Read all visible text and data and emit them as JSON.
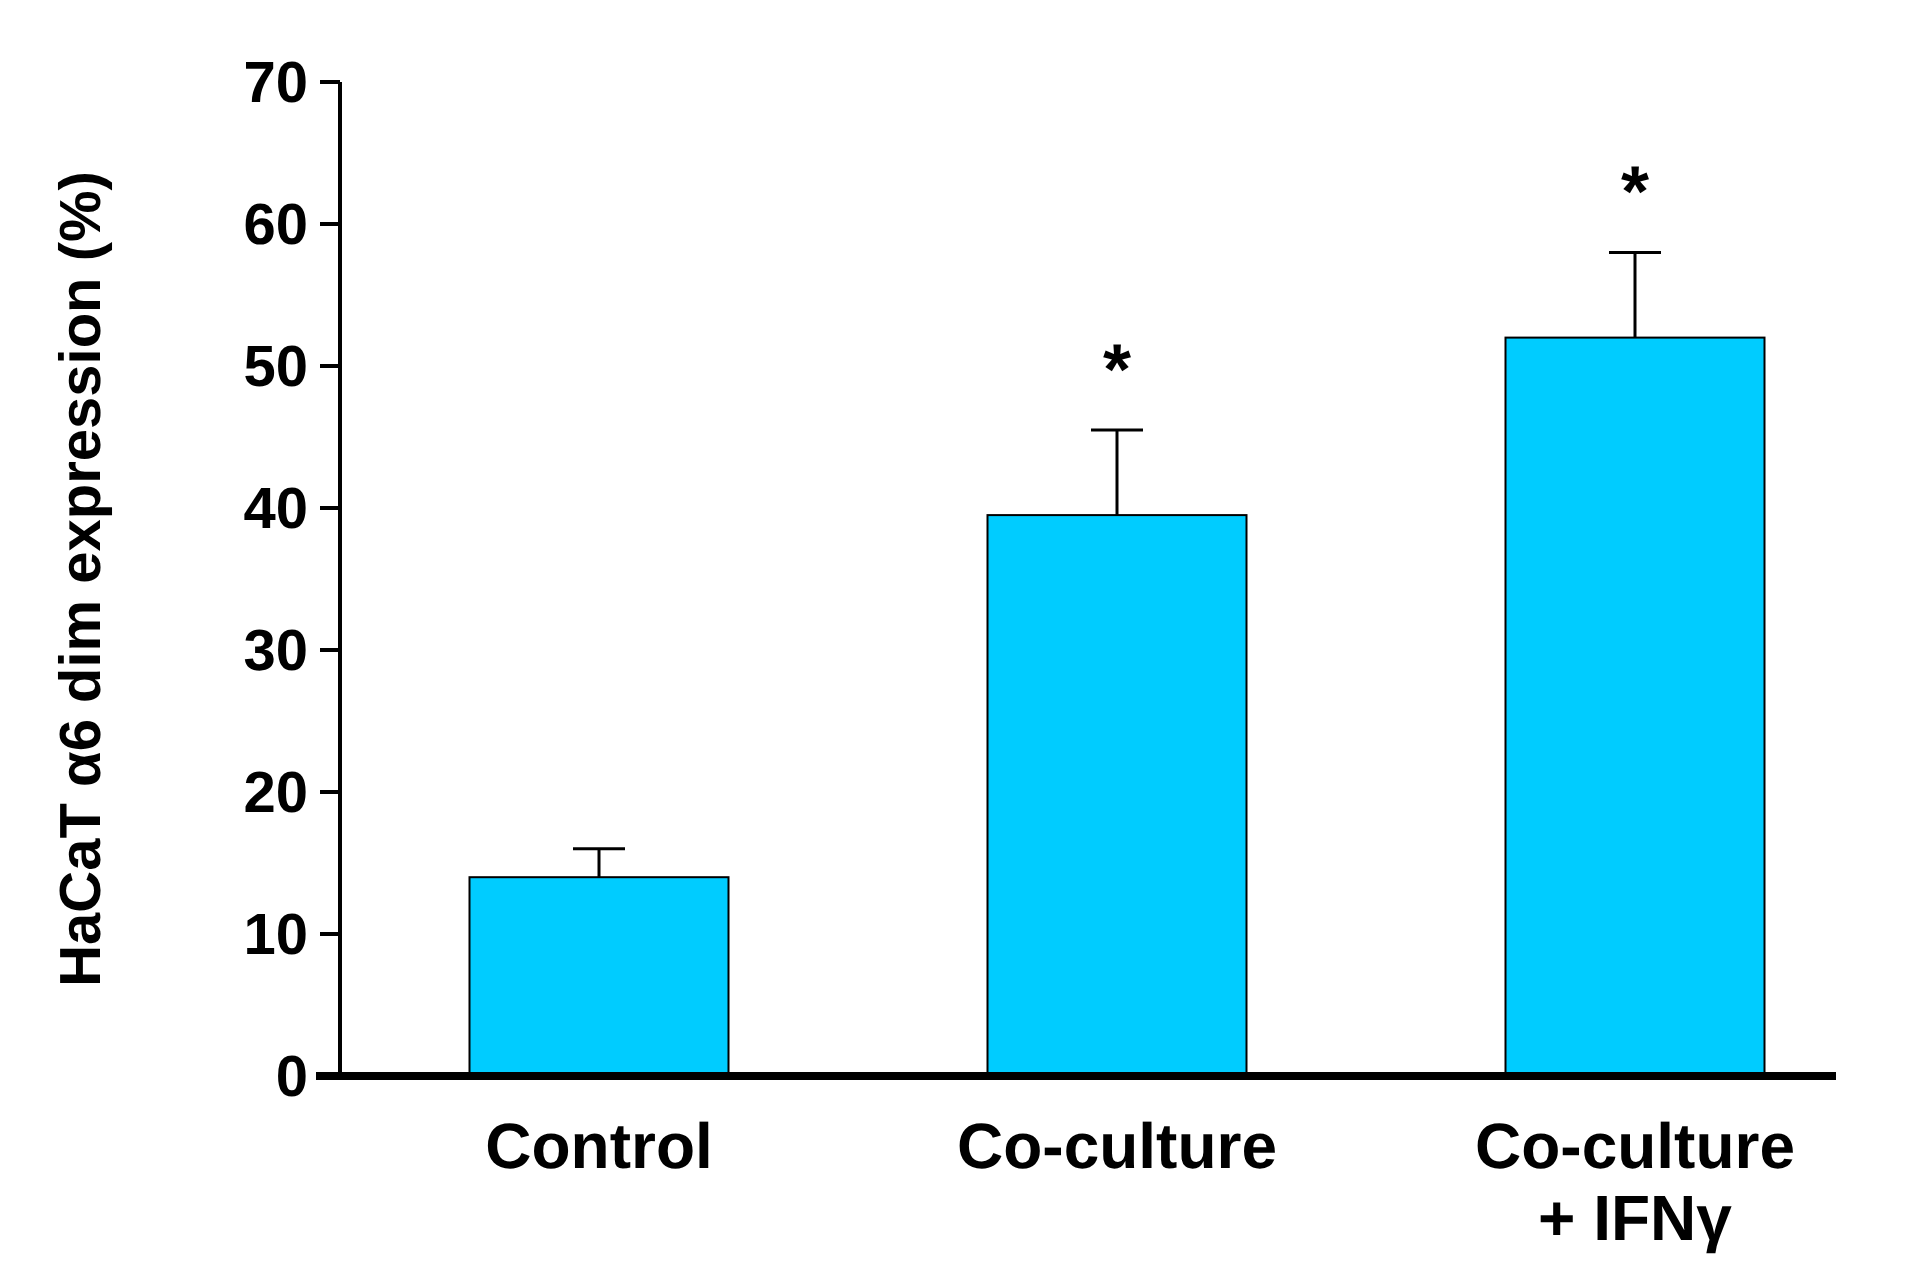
{
  "chart_data": {
    "type": "bar",
    "ylabel": "HaCaT α6 dim expression (%)",
    "categories": [
      "Control",
      "Co-culture",
      "Co-culture\n+ IFNγ"
    ],
    "values": [
      14,
      39.5,
      52
    ],
    "errors": [
      [
        14,
        16
      ],
      [
        39.5,
        45.5
      ],
      [
        52,
        58
      ]
    ],
    "color": "#00ccff",
    "ylim": [
      0,
      70
    ],
    "yticks": [
      0,
      10,
      20,
      30,
      40,
      50,
      60,
      70
    ],
    "annotations": [
      {
        "text": "*",
        "x": "Co-culture",
        "y": 45.5
      },
      {
        "text": "*",
        "x": "Co-culture\n+ IFNγ",
        "y": 58
      }
    ],
    "grid": false
  }
}
